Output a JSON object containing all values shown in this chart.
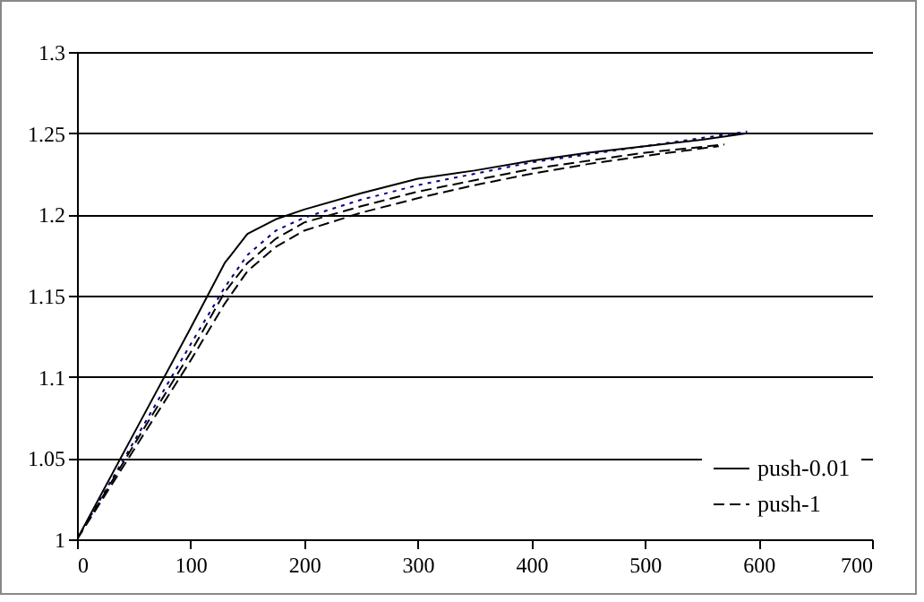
{
  "chart_data": {
    "type": "line",
    "xlim": [
      0,
      700
    ],
    "xticks": [
      0,
      100,
      200,
      300,
      400,
      500,
      600,
      700
    ],
    "ylim": [
      1,
      1.3
    ],
    "yticks": [
      1,
      1.05,
      1.1,
      1.15,
      1.2,
      1.25,
      1.3
    ],
    "grid": "y",
    "legend": "bottom right",
    "series": [
      {
        "color": "#000080",
        "line_style": "dotted",
        "x": [
          0,
          50,
          100,
          130,
          150,
          175,
          200,
          250,
          300,
          350,
          400,
          450,
          500,
          550,
          590
        ],
        "values": [
          1,
          1.06,
          1.12,
          1.155,
          1.175,
          1.19,
          1.198,
          1.209,
          1.218,
          1.225,
          1.232,
          1.237,
          1.242,
          1.247,
          1.251
        ]
      },
      {
        "name": "push-0.01",
        "color": "#000000",
        "line_style": "solid",
        "x": [
          0,
          50,
          100,
          130,
          150,
          175,
          200,
          250,
          300,
          350,
          400,
          450,
          500,
          550,
          590
        ],
        "values": [
          1,
          1.065,
          1.13,
          1.17,
          1.188,
          1.197,
          1.203,
          1.213,
          1.222,
          1.227,
          1.233,
          1.238,
          1.242,
          1.246,
          1.25
        ]
      },
      {
        "color": "#000000",
        "line_style": "dashed",
        "x": [
          0,
          50,
          100,
          130,
          150,
          175,
          200,
          250,
          300,
          350,
          400,
          450,
          500,
          565
        ],
        "values": [
          1,
          1.055,
          1.11,
          1.145,
          1.165,
          1.18,
          1.19,
          1.201,
          1.21,
          1.218,
          1.225,
          1.231,
          1.236,
          1.242
        ]
      },
      {
        "name": "push-1",
        "color": "#000000",
        "line_style": "dashed",
        "x": [
          0,
          50,
          100,
          130,
          150,
          175,
          200,
          250,
          300,
          350,
          400,
          450,
          500,
          570
        ],
        "values": [
          1,
          1.058,
          1.115,
          1.152,
          1.17,
          1.185,
          1.195,
          1.205,
          1.214,
          1.221,
          1.228,
          1.233,
          1.238,
          1.243
        ]
      }
    ]
  }
}
